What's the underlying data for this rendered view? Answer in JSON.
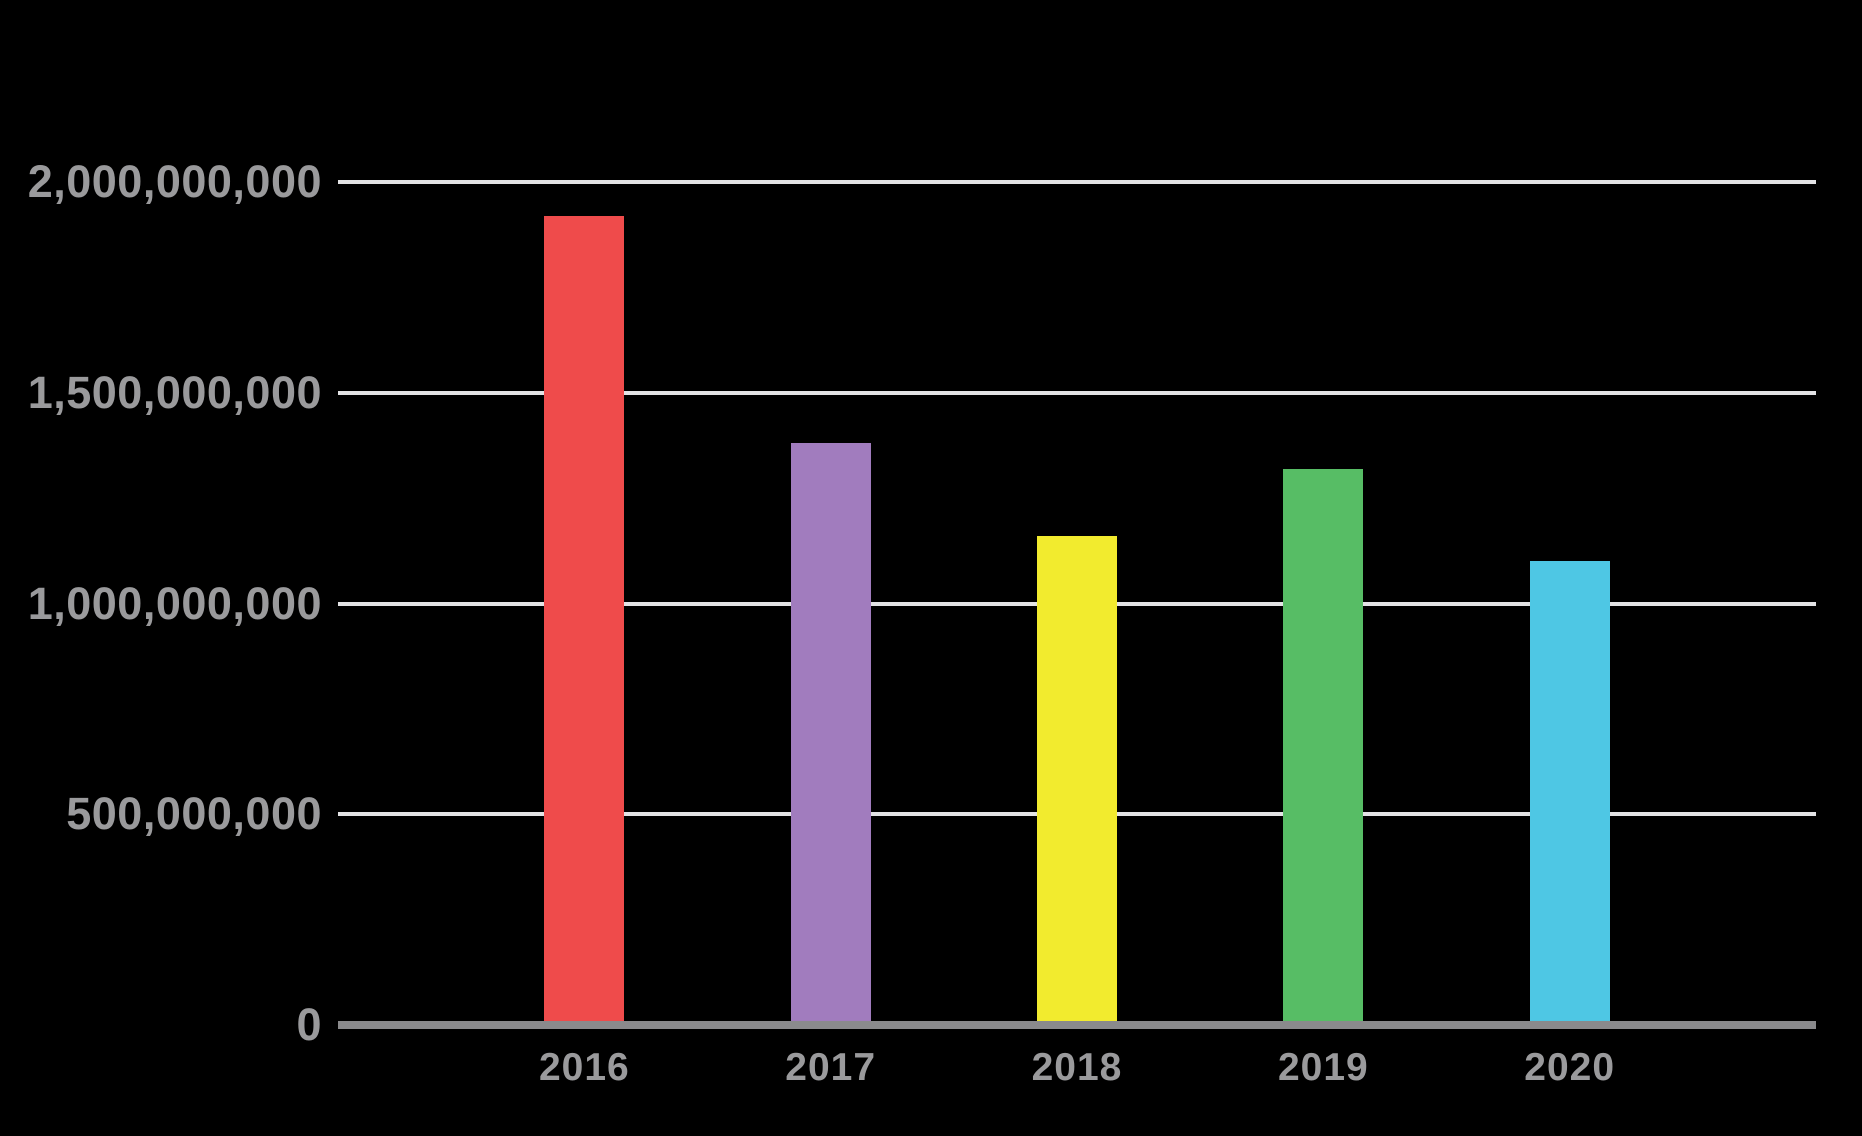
{
  "page": {
    "background_color": "#000000"
  },
  "chart_data": {
    "type": "bar",
    "title": "",
    "xlabel": "",
    "ylabel": "",
    "categories": [
      "2016",
      "2017",
      "2018",
      "2019",
      "2020"
    ],
    "values": [
      1920000000,
      1380000000,
      1160000000,
      1320000000,
      1100000000
    ],
    "bar_colors": [
      "#EF4B4B",
      "#A17CBE",
      "#F2EB2E",
      "#57BD65",
      "#4EC7E4"
    ],
    "ylim": [
      0,
      2000000000
    ],
    "ytick_values": [
      2000000000,
      1500000000,
      1000000000,
      500000000,
      0
    ],
    "ytick_labels": [
      "2,000,000,000",
      "1,500,000,000",
      "1,000,000,000",
      "500,000,000",
      "0"
    ],
    "grid": "horizontal-only",
    "legend": "none",
    "colors": {
      "axis_text": "#9A9A9C",
      "gridline": "#E3E3E5",
      "baseline": "#8A8A8C"
    }
  }
}
